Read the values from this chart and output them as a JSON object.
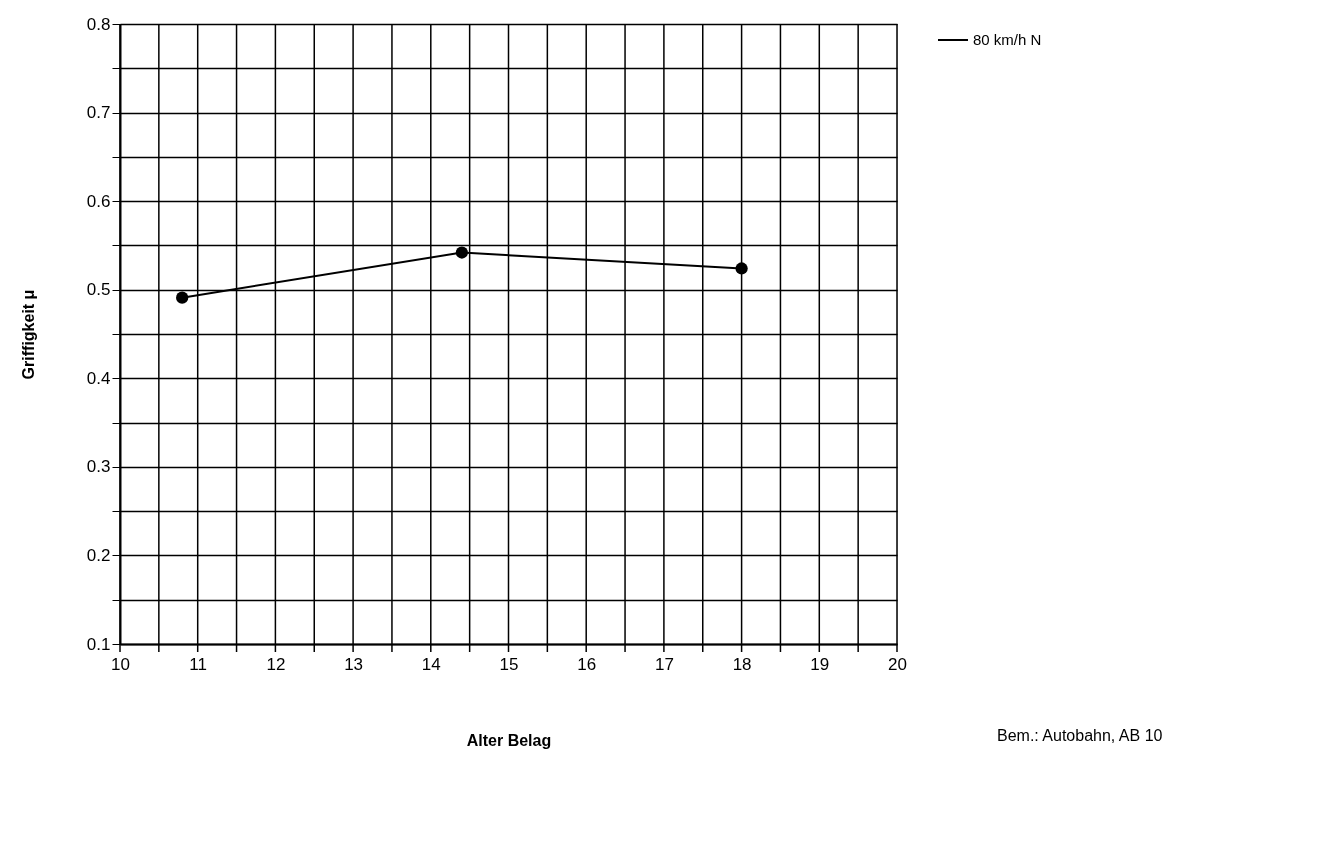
{
  "chart_data": {
    "type": "line",
    "xlabel": "Alter   Belag",
    "ylabel": "Griffigkeit   μ",
    "annotations": [
      "Bem.: Autobahn, AB 10"
    ],
    "x": [
      10.8,
      14.4,
      18.0
    ],
    "series": [
      {
        "name": "80 km/h N",
        "color": "#000000",
        "values": [
          0.491,
          0.542,
          0.524
        ]
      }
    ],
    "xlim": [
      10,
      20
    ],
    "xticks": [
      10,
      {
        "value": 10.5,
        "label": null
      },
      11,
      {
        "value": 11.5,
        "label": null
      },
      12,
      {
        "value": 12.5,
        "label": null
      },
      13,
      {
        "value": 13.5,
        "label": null
      },
      14,
      {
        "value": 14.5,
        "label": null
      },
      15,
      {
        "value": 15.5,
        "label": null
      },
      16,
      {
        "value": 16.5,
        "label": null
      },
      17,
      {
        "value": 17.5,
        "label": null
      },
      18,
      {
        "value": 18.5,
        "label": null
      },
      19,
      {
        "value": 19.5,
        "label": null
      },
      20
    ],
    "ylim": [
      0.1,
      0.8
    ],
    "yticks": [
      0.1,
      {
        "value": 0.15,
        "label": null
      },
      0.2,
      {
        "value": 0.25,
        "label": null
      },
      0.3,
      {
        "value": 0.35,
        "label": null
      },
      0.4,
      {
        "value": 0.45,
        "label": null
      },
      0.5,
      {
        "value": 0.55,
        "label": null
      },
      0.6,
      {
        "value": 0.65,
        "label": null
      },
      0.7,
      {
        "value": 0.75,
        "label": null
      },
      0.8
    ],
    "grid": true,
    "legend": "right",
    "marker": "circle",
    "line_style": "solid"
  }
}
